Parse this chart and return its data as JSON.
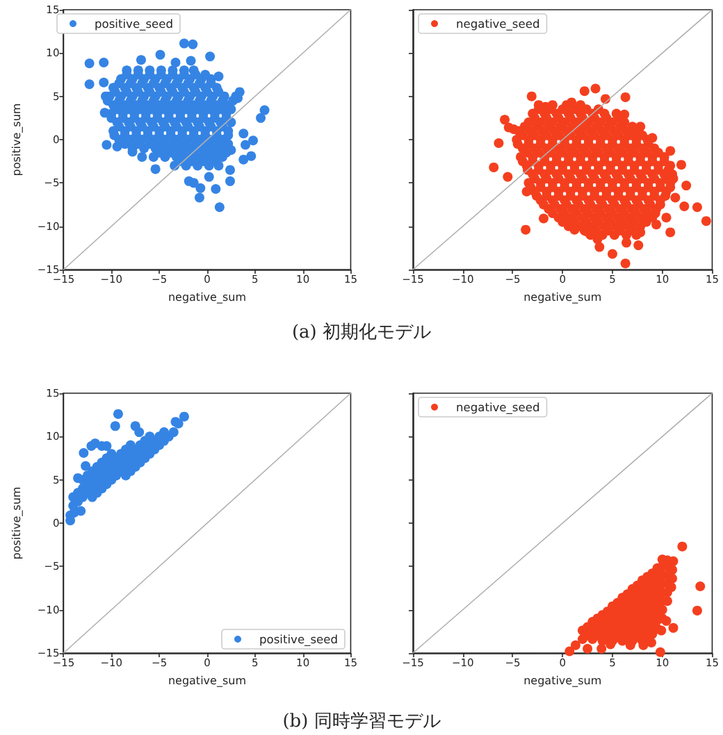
{
  "chart_data": [
    {
      "type": "scatter",
      "xlabel": "negative_sum",
      "ylabel": "positive_sum",
      "xlim": [
        -15,
        15
      ],
      "ylim": [
        -15,
        15
      ],
      "xticks": [
        {
          "value": -15,
          "label": "−15"
        },
        {
          "value": -10,
          "label": "−10"
        },
        {
          "value": -5,
          "label": "−5"
        },
        0,
        5,
        10,
        15
      ],
      "yticks": [
        {
          "value": -15,
          "label": "−15"
        },
        {
          "value": -10,
          "label": "−10"
        },
        {
          "value": -5,
          "label": "−5"
        },
        0,
        5,
        10,
        15
      ],
      "legend": "top left",
      "annotations": [
        "(a) 初期化モデル"
      ],
      "series": [
        {
          "name": "positive_seed",
          "color": "#3584e4",
          "marker": "circle",
          "x": [
            -8.4,
            -7.2,
            -6.0,
            -4.8,
            -3.6,
            -2.4,
            -1.4,
            -9.0,
            -7.8,
            -6.6,
            -5.4,
            -4.2,
            -3.0,
            -1.8,
            -0.6,
            0.4,
            -9.8,
            -8.6,
            -7.4,
            -6.2,
            -5.0,
            -3.8,
            -2.6,
            -1.4,
            -0.2,
            1.0,
            -10.2,
            -9.0,
            -7.8,
            -6.6,
            -5.4,
            -4.2,
            -3.0,
            -1.8,
            -0.6,
            0.6,
            1.8,
            3.0,
            -9.8,
            -8.6,
            -7.4,
            -6.2,
            -5.0,
            -3.8,
            -2.6,
            -1.4,
            -0.2,
            1.0,
            2.2,
            -10.0,
            -8.8,
            -7.6,
            -6.4,
            -5.2,
            -4.0,
            -2.8,
            -1.6,
            -0.4,
            0.8,
            2.0,
            -9.4,
            -8.2,
            -7.0,
            -5.8,
            -4.6,
            -3.4,
            -2.2,
            -1.0,
            0.2,
            1.4,
            2.5,
            -9.8,
            -8.6,
            -7.4,
            -6.2,
            -5.0,
            -3.8,
            -2.6,
            -1.4,
            -0.2,
            1.0,
            2.2,
            -9.2,
            -8.0,
            -6.8,
            -5.6,
            -4.4,
            -3.2,
            -2.0,
            -0.8,
            0.4,
            1.6,
            -7.8,
            -6.6,
            -5.4,
            -4.2,
            -3.0,
            -1.8,
            -0.6,
            0.6,
            1.8,
            -5.6,
            -4.4,
            -3.2,
            -2.0,
            -0.8,
            0.4,
            1.6,
            -3.4,
            -2.2,
            -1.0,
            0.2,
            1.2,
            -12.3,
            -12.3,
            -10.8,
            -10.8,
            -10.6,
            -10.7,
            -10.5,
            -9.4,
            -7.8,
            -6.8,
            -5.4,
            -6.9,
            -4.9,
            -3.3,
            -2.4,
            -1.5,
            -1.7,
            0.3,
            1.2,
            3.4,
            3.2,
            6.0,
            5.6,
            4.8,
            3.8,
            4.0,
            4.6,
            3.8,
            2.5,
            2.4,
            2.4,
            1.3,
            0.9,
            0.2,
            -0.7,
            -0.8,
            -1.4,
            -1.9,
            -2.8,
            -1.6,
            -0.4,
            0.8,
            -5.0,
            -3.8,
            -2.6,
            -1.4,
            -0.2,
            1.0,
            2.0,
            -8.6,
            -7.2,
            -6.0,
            -4.8,
            -3.6,
            -2.4,
            -1.2,
            0.0,
            1.2,
            2.2,
            -9.7,
            -8.6,
            -7.4,
            -6.2,
            -5.0,
            -3.8,
            -2.6,
            -1.4,
            -0.2,
            1.0,
            2.2,
            -9.2,
            -8.0,
            -6.8,
            -5.6,
            -4.4,
            -3.2,
            -2.0,
            -0.8,
            0.4,
            1.6,
            -10.0,
            -8.8,
            -7.6,
            -6.4,
            -5.2,
            -4.0,
            -2.8,
            -1.6,
            -0.4,
            0.8,
            2.0,
            -9.4,
            -8.2,
            -7.0,
            -5.8,
            -4.6,
            -3.4,
            -2.2,
            -1.0,
            0.2,
            1.4,
            2.5,
            -10.4,
            -9.2,
            -8.0,
            -6.8,
            -5.6,
            -4.4,
            -3.2,
            -2.0,
            -0.8,
            0.4,
            1.6,
            2.7,
            -9.6,
            -8.4,
            -7.2,
            -6.0,
            -4.8,
            -3.6,
            -2.4,
            -1.2,
            0.0,
            1.2,
            -9.2,
            -8.0,
            -6.8,
            -5.6,
            -4.4,
            -3.2,
            -2.0,
            -0.8,
            0.4,
            -8.4,
            -7.2,
            -6.0,
            -4.8,
            -3.6,
            -2.4,
            -1.2,
            -0.2
          ],
          "values": [
            8,
            8,
            8,
            8,
            8,
            8,
            8,
            7,
            7,
            7,
            7,
            7,
            7,
            7,
            7,
            7,
            6,
            6,
            6,
            6,
            6,
            6,
            6,
            6,
            6,
            6,
            5,
            5,
            5,
            5,
            5,
            5,
            5,
            5,
            5,
            5,
            5,
            5,
            4,
            4,
            4,
            4,
            4,
            4,
            4,
            4,
            4,
            4,
            4,
            3,
            3,
            3,
            3,
            3,
            3,
            3,
            3,
            3,
            3,
            3,
            2,
            2,
            2,
            2,
            2,
            2,
            2,
            2,
            2,
            2,
            2,
            1,
            1,
            1,
            1,
            1,
            1,
            1,
            1,
            1,
            1,
            1,
            0,
            0,
            0,
            0,
            0,
            0,
            0,
            0,
            0,
            0,
            -1,
            -1,
            -1,
            -1,
            -1,
            -1,
            -1,
            -1,
            -1,
            -2,
            -2,
            -2,
            -2,
            -2,
            -2,
            -2,
            -3,
            -3,
            -3,
            -3,
            -3,
            8.8,
            6.4,
            8.9,
            6.6,
            5.0,
            3.1,
            -0.6,
            -0.8,
            -1.4,
            -2.0,
            -3.4,
            9.2,
            9.8,
            8.9,
            11.1,
            11.0,
            9.1,
            9.6,
            7.3,
            5.5,
            4.8,
            3.4,
            2.5,
            -0.1,
            0.7,
            -0.6,
            -1.9,
            -2.3,
            -1.2,
            -3.5,
            -4.8,
            -7.8,
            -5.7,
            -4.3,
            -5.6,
            -6.7,
            -5.0,
            -4.8,
            -2.5,
            -2.5,
            -2.5,
            -2.5,
            -1.5,
            -1.5,
            -1.5,
            -1.5,
            -1.5,
            -1.5,
            -1.5,
            -0.5,
            -0.5,
            -0.5,
            -0.5,
            -0.5,
            -0.5,
            -0.5,
            -0.5,
            -0.5,
            -0.5,
            0.5,
            0.5,
            0.5,
            0.5,
            0.5,
            0.5,
            0.5,
            0.5,
            0.5,
            0.5,
            0.5,
            1.5,
            1.5,
            1.5,
            1.5,
            1.5,
            1.5,
            1.5,
            1.5,
            1.5,
            1.5,
            2.5,
            2.5,
            2.5,
            2.5,
            2.5,
            2.5,
            2.5,
            2.5,
            2.5,
            2.5,
            2.5,
            3.5,
            3.5,
            3.5,
            3.5,
            3.5,
            3.5,
            3.5,
            3.5,
            3.5,
            3.5,
            3.5,
            4.5,
            4.5,
            4.5,
            4.5,
            4.5,
            4.5,
            4.5,
            4.5,
            4.5,
            4.5,
            4.5,
            4.5,
            5.5,
            5.5,
            5.5,
            5.5,
            5.5,
            5.5,
            5.5,
            5.5,
            5.5,
            5.5,
            6.5,
            6.5,
            6.5,
            6.5,
            6.5,
            6.5,
            6.5,
            6.5,
            6.5,
            7.5,
            7.5,
            7.5,
            7.5,
            7.5,
            7.5,
            7.5,
            7.5
          ]
        },
        {
          "type": "line",
          "color": "#b0b0b0",
          "x": [
            -15,
            15
          ],
          "values": [
            -15,
            15
          ]
        }
      ]
    },
    {
      "type": "scatter",
      "xlabel": "negative_sum",
      "xlim": [
        -15,
        15
      ],
      "ylim": [
        -15,
        15
      ],
      "xticks": [
        {
          "value": -15,
          "label": "−15"
        },
        {
          "value": -10,
          "label": "−10"
        },
        {
          "value": -5,
          "label": "−5"
        },
        0,
        5,
        10,
        15
      ],
      "yticks": [
        -15,
        -10,
        -5,
        0,
        5,
        10,
        15
      ],
      "tick_labels": "x",
      "legend": "top left",
      "series": [
        {
          "name": "negative_seed",
          "color": "#f43f1f",
          "marker": "circle",
          "x": [
            -2.4,
            -1.0,
            0.4,
            1.8,
            -3.0,
            -1.8,
            -0.6,
            0.6,
            1.8,
            3.0,
            4.2,
            5.4,
            -3.4,
            -2.2,
            -1.0,
            0.2,
            1.4,
            2.6,
            3.8,
            5.0,
            6.2,
            -4.4,
            -3.2,
            -2.0,
            -0.8,
            0.4,
            1.6,
            2.8,
            4.0,
            5.2,
            6.4,
            7.5,
            -4.6,
            -3.4,
            -2.2,
            -1.0,
            0.2,
            1.4,
            2.6,
            3.8,
            5.0,
            6.2,
            7.4,
            8.5,
            -4.0,
            -2.8,
            -1.6,
            -0.4,
            0.8,
            2.0,
            3.2,
            4.4,
            5.6,
            6.8,
            8.0,
            9.2,
            -4.2,
            -3.0,
            -1.8,
            -0.6,
            0.6,
            1.8,
            3.0,
            4.2,
            5.4,
            6.6,
            7.8,
            9.0,
            10.2,
            -3.6,
            -2.4,
            -1.2,
            0.0,
            1.2,
            2.4,
            3.6,
            4.8,
            6.0,
            7.2,
            8.4,
            9.6,
            10.8,
            -3.0,
            -1.8,
            -0.6,
            0.6,
            1.8,
            3.0,
            4.2,
            5.4,
            6.6,
            7.8,
            9.0,
            10.2,
            11.0,
            -3.4,
            -2.2,
            -1.0,
            0.2,
            1.4,
            2.6,
            3.8,
            5.0,
            6.2,
            7.4,
            8.6,
            9.8,
            10.8,
            -2.8,
            -1.6,
            -0.4,
            0.8,
            2.0,
            3.2,
            4.4,
            5.6,
            6.8,
            8.0,
            9.2,
            10.4,
            -2.2,
            -1.0,
            0.2,
            1.4,
            2.6,
            3.8,
            5.0,
            6.2,
            7.4,
            8.6,
            9.8,
            -1.4,
            -0.2,
            1.0,
            2.2,
            3.4,
            4.6,
            5.8,
            7.0,
            8.2,
            9.4,
            -0.4,
            0.8,
            2.0,
            3.2,
            4.4,
            5.6,
            6.8,
            8.0,
            9.0,
            0.6,
            1.8,
            3.0,
            4.2,
            5.4,
            6.6,
            7.8,
            2.8,
            4.0,
            5.2,
            6.4,
            7.4,
            3.3,
            2.2,
            6.3,
            4.3,
            -3.1,
            -5.8,
            -6.4,
            -6.9,
            -5.5,
            -5.4,
            -4.9,
            -3.7,
            -1.9,
            -3.6,
            1.2,
            2.4,
            3.5,
            5.0,
            6.3,
            6.4,
            7.6,
            3.7,
            10.8,
            12.2,
            12.4,
            13.5,
            14.4,
            11.9,
            10.8,
            9.0,
            7.8,
            6.2,
            0.9,
            -1.7,
            11.1,
            11.3,
            10.4,
            9.4,
            7.8,
            2.2,
            3.4,
            4.6,
            5.8,
            7.0,
            0.0,
            1.2,
            2.4,
            3.6,
            4.8,
            6.0,
            7.2,
            8.4,
            -1.0,
            0.2,
            1.4,
            2.6,
            3.8,
            5.0,
            6.2,
            7.4,
            8.6,
            9.3,
            -1.9,
            -0.8,
            0.4,
            1.6,
            2.8,
            4.0,
            5.2,
            6.4,
            7.6,
            8.8,
            9.8,
            -2.6,
            -1.6,
            -0.4,
            0.8,
            2.0,
            3.2,
            4.4,
            5.6,
            6.8,
            8.0,
            9.2,
            10.3,
            -3.2,
            -2.2,
            -1.0,
            0.2,
            1.4,
            2.6,
            3.8,
            5.0,
            6.2,
            7.4,
            8.6,
            9.8,
            10.8,
            -2.8,
            -1.6,
            -0.4,
            0.8,
            2.0,
            3.2,
            4.4,
            5.6,
            6.8,
            8.0,
            9.2,
            10.4,
            -3.5,
            -2.4,
            -1.2,
            0.0,
            1.2,
            2.4,
            3.6,
            4.8,
            6.0,
            7.2,
            8.4,
            9.6,
            10.6,
            -4.0,
            -3.0,
            -1.8,
            -0.6,
            0.6,
            1.8,
            3.0,
            4.2,
            5.4,
            6.6,
            7.8,
            9.0,
            10.2,
            -3.6,
            -2.4,
            -1.2,
            0.0,
            1.2,
            2.4,
            3.6,
            4.8,
            6.0,
            7.2,
            8.4,
            9.6,
            -4.5,
            -3.4,
            -2.2,
            -1.0,
            0.2,
            1.4,
            2.6,
            3.8,
            5.0,
            6.2,
            7.4,
            8.6,
            -4.0,
            -2.8,
            -1.6,
            -0.4,
            0.8,
            2.0,
            3.2,
            4.4,
            5.6,
            6.8,
            8.0,
            -3.8,
            -2.6,
            -1.4,
            -0.2,
            1.0,
            2.2,
            3.4,
            4.6,
            5.8,
            7.0,
            -2.8,
            -1.6,
            -0.4,
            0.8,
            2.0,
            3.2,
            4.4,
            5.6,
            -2.4,
            -1.2,
            0.0,
            1.2,
            2.4,
            3.6
          ],
          "values": [
            4,
            4,
            4,
            4,
            3,
            3,
            3,
            3,
            3,
            3,
            3,
            3,
            2,
            2,
            2,
            2,
            2,
            2,
            2,
            2,
            2,
            1,
            1,
            1,
            1,
            1,
            1,
            1,
            1,
            1,
            1,
            1,
            0,
            0,
            0,
            0,
            0,
            0,
            0,
            0,
            0,
            0,
            0,
            0,
            -1,
            -1,
            -1,
            -1,
            -1,
            -1,
            -1,
            -1,
            -1,
            -1,
            -1,
            -1,
            -2,
            -2,
            -2,
            -2,
            -2,
            -2,
            -2,
            -2,
            -2,
            -2,
            -2,
            -2,
            -2,
            -3,
            -3,
            -3,
            -3,
            -3,
            -3,
            -3,
            -3,
            -3,
            -3,
            -3,
            -3,
            -3,
            -4,
            -4,
            -4,
            -4,
            -4,
            -4,
            -4,
            -4,
            -4,
            -4,
            -4,
            -4,
            -4,
            -5,
            -5,
            -5,
            -5,
            -5,
            -5,
            -5,
            -5,
            -5,
            -5,
            -5,
            -5,
            -5,
            -6,
            -6,
            -6,
            -6,
            -6,
            -6,
            -6,
            -6,
            -6,
            -6,
            -6,
            -6,
            -7,
            -7,
            -7,
            -7,
            -7,
            -7,
            -7,
            -7,
            -7,
            -7,
            -7,
            -8,
            -8,
            -8,
            -8,
            -8,
            -8,
            -8,
            -8,
            -8,
            -8,
            -9,
            -9,
            -9,
            -9,
            -9,
            -9,
            -9,
            -9,
            -9,
            -10,
            -10,
            -10,
            -10,
            -10,
            -10,
            -10,
            -11,
            -11,
            -11,
            -11,
            -11,
            5.9,
            5.6,
            4.9,
            4.7,
            5.0,
            2.3,
            -0.4,
            -3.2,
            -4.3,
            1.4,
            1.2,
            -10.4,
            -9.1,
            -6.0,
            -10.4,
            -10.6,
            -11.5,
            -13.2,
            -14.3,
            -11.9,
            -12.2,
            -12.4,
            -10.7,
            -7.7,
            -5.3,
            -7.8,
            -9.4,
            -2.9,
            -1.3,
            0.2,
            1.5,
            2.9,
            4.3,
            3.8,
            -4.5,
            -6.7,
            -9.0,
            -9.8,
            -10.7,
            -10.5,
            -10.5,
            -10.5,
            -10.5,
            -10.5,
            -9.5,
            -9.5,
            -9.5,
            -9.5,
            -9.5,
            -9.5,
            -9.5,
            -9.5,
            -8.5,
            -8.5,
            -8.5,
            -8.5,
            -8.5,
            -8.5,
            -8.5,
            -8.5,
            -8.5,
            -8.5,
            -7.5,
            -7.5,
            -7.5,
            -7.5,
            -7.5,
            -7.5,
            -7.5,
            -7.5,
            -7.5,
            -7.5,
            -7.5,
            -6.5,
            -6.5,
            -6.5,
            -6.5,
            -6.5,
            -6.5,
            -6.5,
            -6.5,
            -6.5,
            -6.5,
            -6.5,
            -6.5,
            -5.5,
            -5.5,
            -5.5,
            -5.5,
            -5.5,
            -5.5,
            -5.5,
            -5.5,
            -5.5,
            -5.5,
            -5.5,
            -5.5,
            -5.5,
            -4.5,
            -4.5,
            -4.5,
            -4.5,
            -4.5,
            -4.5,
            -4.5,
            -4.5,
            -4.5,
            -4.5,
            -4.5,
            -4.5,
            -3.5,
            -3.5,
            -3.5,
            -3.5,
            -3.5,
            -3.5,
            -3.5,
            -3.5,
            -3.5,
            -3.5,
            -3.5,
            -3.5,
            -3.5,
            -2.5,
            -2.5,
            -2.5,
            -2.5,
            -2.5,
            -2.5,
            -2.5,
            -2.5,
            -2.5,
            -2.5,
            -2.5,
            -2.5,
            -2.5,
            -1.5,
            -1.5,
            -1.5,
            -1.5,
            -1.5,
            -1.5,
            -1.5,
            -1.5,
            -1.5,
            -1.5,
            -1.5,
            -1.5,
            -0.5,
            -0.5,
            -0.5,
            -0.5,
            -0.5,
            -0.5,
            -0.5,
            -0.5,
            -0.5,
            -0.5,
            -0.5,
            -0.5,
            0.5,
            0.5,
            0.5,
            0.5,
            0.5,
            0.5,
            0.5,
            0.5,
            0.5,
            0.5,
            0.5,
            1.5,
            1.5,
            1.5,
            1.5,
            1.5,
            1.5,
            1.5,
            1.5,
            1.5,
            1.5,
            2.5,
            2.5,
            2.5,
            2.5,
            2.5,
            2.5,
            2.5,
            2.5,
            3.5,
            3.5,
            3.5,
            3.5,
            3.5,
            3.5
          ]
        },
        {
          "type": "line",
          "color": "#b0b0b0",
          "x": [
            -15,
            15
          ],
          "values": [
            -15,
            15
          ]
        }
      ]
    },
    {
      "type": "scatter",
      "xlabel": "negative_sum",
      "ylabel": "positive_sum",
      "xlim": [
        -15,
        15
      ],
      "ylim": [
        -15,
        15
      ],
      "xticks": [
        {
          "value": -15,
          "label": "−15"
        },
        {
          "value": -10,
          "label": "−10"
        },
        {
          "value": -5,
          "label": "−5"
        },
        0,
        5,
        10,
        15
      ],
      "yticks": [
        {
          "value": -15,
          "label": "−15"
        },
        {
          "value": -10,
          "label": "−10"
        },
        {
          "value": -5,
          "label": "−5"
        },
        0,
        5,
        10,
        15
      ],
      "legend": "bottom right",
      "annotations": [
        "(b) 同時学習モデル"
      ],
      "series": [
        {
          "name": "positive_seed",
          "color": "#3584e4",
          "marker": "circle",
          "x": [
            -14,
            -14,
            -13.5,
            -13.5,
            -13,
            -13,
            -13,
            -12.5,
            -12.5,
            -12.5,
            -12,
            -12,
            -12,
            -12,
            -11.5,
            -11.5,
            -11.5,
            -11.5,
            -11,
            -11,
            -11,
            -11,
            -10.5,
            -10.5,
            -10.5,
            -10.5,
            -10,
            -10,
            -10,
            -10,
            -9.5,
            -9.5,
            -9.5,
            -9,
            -9,
            -9,
            -8.5,
            -8.5,
            -8.5,
            -8.5,
            -8,
            -8,
            -8,
            -8,
            -7.5,
            -7.5,
            -7.5,
            -7,
            -7,
            -7,
            -6.5,
            -6.5,
            -6.5,
            -6,
            -6,
            -6,
            -5.5,
            -5.5,
            -5,
            -5,
            -4.5,
            -4.5,
            -4,
            -3.5,
            -9.3,
            -2.4,
            -3.3,
            -3.0,
            -9.6,
            -7.5,
            -7.1,
            -12.9,
            -12.1,
            -11.7,
            -11.0,
            -10.5,
            -14.3,
            -14.3,
            -13.9,
            -13.2,
            -12.7,
            -13.5
          ],
          "values": [
            2,
            3,
            2.5,
            3.5,
            3,
            4,
            5,
            3.5,
            4.5,
            5.5,
            3,
            4,
            5,
            6,
            3.5,
            4.5,
            5.5,
            6.5,
            4,
            5,
            6,
            7,
            4.5,
            5.5,
            6.5,
            7.5,
            5,
            6,
            7,
            8,
            5.5,
            6.5,
            7.5,
            6,
            7,
            8,
            5.5,
            6.5,
            7.5,
            8.5,
            6,
            7,
            8,
            9,
            6.5,
            7.5,
            8.5,
            7,
            8,
            9,
            7.5,
            8.5,
            9.5,
            8,
            9,
            10,
            8.5,
            9.5,
            9,
            10,
            9.5,
            10.5,
            10,
            10.5,
            12.6,
            12.3,
            11.7,
            11.5,
            11.2,
            11.2,
            10.5,
            8.1,
            8.9,
            9.2,
            8.9,
            8.9,
            0.9,
            0.3,
            1.2,
            1.4,
            6.6,
            5.2
          ]
        },
        {
          "type": "line",
          "color": "#b0b0b0",
          "x": [
            -15,
            15
          ],
          "values": [
            -15,
            15
          ]
        }
      ]
    },
    {
      "type": "scatter",
      "xlabel": "negative_sum",
      "xlim": [
        -15,
        15
      ],
      "ylim": [
        -15,
        15
      ],
      "xticks": [
        {
          "value": -15,
          "label": "−15"
        },
        {
          "value": -10,
          "label": "−10"
        },
        {
          "value": -5,
          "label": "−5"
        },
        0,
        5,
        10,
        15
      ],
      "yticks": [
        -15,
        -10,
        -5,
        0,
        5,
        10,
        15
      ],
      "tick_labels": "x",
      "legend": "top left",
      "series": [
        {
          "name": "negative_seed",
          "color": "#f43f1f",
          "marker": "circle",
          "x": [
            2,
            2,
            2.5,
            2.5,
            3,
            3,
            3,
            3.5,
            3.5,
            3.5,
            4,
            4,
            4,
            4,
            4.5,
            4.5,
            4.5,
            4.5,
            5,
            5,
            5,
            5,
            5,
            5.5,
            5.5,
            5.5,
            5.5,
            5.5,
            6,
            6,
            6,
            6,
            6,
            6,
            6.5,
            6.5,
            6.5,
            6.5,
            6.5,
            6.5,
            7,
            7,
            7,
            7,
            7,
            7,
            7,
            7.5,
            7.5,
            7.5,
            7.5,
            7.5,
            7.5,
            7.5,
            8,
            8,
            8,
            8,
            8,
            8,
            8,
            8,
            8.5,
            8.5,
            8.5,
            8.5,
            8.5,
            8.5,
            8.5,
            8.5,
            9,
            9,
            9,
            9,
            9,
            9,
            9,
            9,
            9.5,
            9.5,
            9.5,
            9.5,
            9.5,
            9.5,
            9.5,
            9.5,
            10,
            10,
            10,
            10,
            10,
            10,
            10,
            10,
            10.5,
            10.5,
            10.5,
            10.5,
            10.5,
            10.5,
            11,
            11,
            12.0,
            13.8,
            13.5,
            10.9,
            11.1,
            11.1,
            0.7,
            1.3,
            2.5,
            3.9,
            4.8,
            6.8,
            8.1,
            8.9,
            9.8,
            9.9,
            10.4
          ],
          "values": [
            -13.4,
            -12.4,
            -13.0,
            -12.0,
            -13.4,
            -12.4,
            -11.4,
            -13.0,
            -12.0,
            -11.0,
            -13.6,
            -12.6,
            -11.6,
            -10.6,
            -13.2,
            -12.2,
            -11.2,
            -10.2,
            -13.6,
            -12.6,
            -11.6,
            -10.6,
            -9.6,
            -13.2,
            -12.2,
            -11.2,
            -10.2,
            -9.2,
            -13.6,
            -12.6,
            -11.6,
            -10.6,
            -9.6,
            -8.6,
            -13.2,
            -12.2,
            -11.2,
            -10.2,
            -9.2,
            -8.2,
            -13.6,
            -12.6,
            -11.6,
            -10.6,
            -9.6,
            -8.6,
            -7.6,
            -13.2,
            -12.2,
            -11.2,
            -10.2,
            -9.2,
            -8.2,
            -7.2,
            -13.6,
            -12.6,
            -11.6,
            -10.6,
            -9.6,
            -8.6,
            -7.6,
            -6.6,
            -13.2,
            -12.2,
            -11.2,
            -10.2,
            -9.2,
            -8.2,
            -7.2,
            -6.2,
            -12.8,
            -11.8,
            -10.8,
            -9.8,
            -8.8,
            -7.8,
            -6.8,
            -5.8,
            -12.2,
            -11.2,
            -10.2,
            -9.2,
            -8.2,
            -7.2,
            -6.2,
            -5.2,
            -11.0,
            -10.0,
            -9.0,
            -8.0,
            -7.0,
            -6.0,
            -5.0,
            -4.2,
            -9.0,
            -8.0,
            -7.0,
            -6.0,
            -5.0,
            -4.3,
            -6.4,
            -5.4,
            -2.7,
            -7.3,
            -10.1,
            -7.4,
            -4.4,
            -12.1,
            -14.8,
            -14.1,
            -14.5,
            -14.5,
            -14.0,
            -14.1,
            -14.1,
            -13.8,
            -14.9,
            -12.4,
            -11.3
          ]
        },
        {
          "type": "line",
          "color": "#b0b0b0",
          "x": [
            -15,
            15
          ],
          "values": [
            -15,
            15
          ]
        }
      ]
    }
  ]
}
